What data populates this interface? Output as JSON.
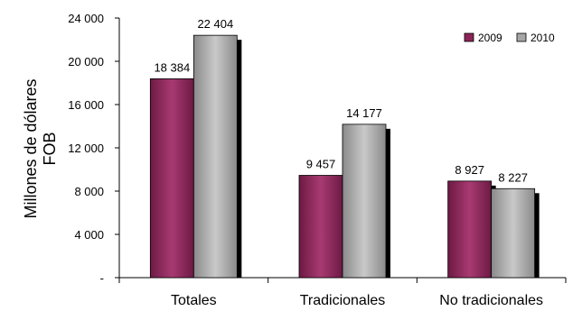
{
  "chart_data": {
    "type": "bar",
    "title": "",
    "xlabel": "",
    "ylabel": [
      "Millones de dólares",
      "FOB"
    ],
    "ylim": [
      0,
      24000
    ],
    "yticks": [
      0,
      4000,
      8000,
      12000,
      16000,
      20000,
      24000
    ],
    "ytick_labels": [
      "-",
      "4 000",
      "8 000",
      "12 000",
      "16 000",
      "20 000",
      "24 000"
    ],
    "categories": [
      "Totales",
      "Tradicionales",
      "No tradicionales"
    ],
    "series": [
      {
        "name": "2009",
        "values": [
          18384,
          9457,
          8927
        ],
        "labels": [
          "18 384",
          "9 457",
          "8 927"
        ],
        "color": "#8b2457"
      },
      {
        "name": "2010",
        "values": [
          22404,
          14177,
          8227
        ],
        "labels": [
          "22 404",
          "14 177",
          "8 227"
        ],
        "color": "#a6a6a6"
      }
    ],
    "legend_position": "top-right",
    "grid": false
  }
}
